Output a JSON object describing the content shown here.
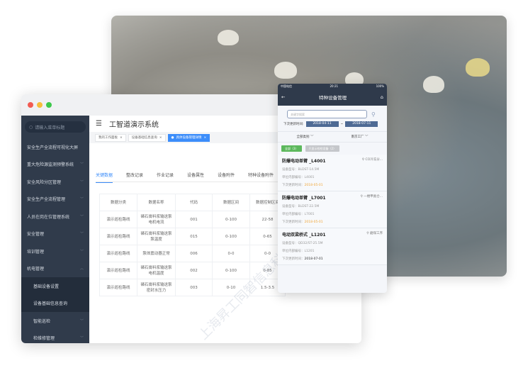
{
  "desktop": {
    "app_title": "工智道演示系统",
    "search_placeholder": "请输入菜单标题",
    "sidebar": [
      {
        "label": "安全生产全流程可视化大屏",
        "chevron": ""
      },
      {
        "label": "重大危险源监测预警系统",
        "chevron": "﹀"
      },
      {
        "label": "安全风险分区管理",
        "chevron": "﹀"
      },
      {
        "label": "安全生产全流程管理",
        "chevron": "﹀"
      },
      {
        "label": "人员在岗在位管理系统",
        "chevron": "﹀"
      },
      {
        "label": "安全管理",
        "chevron": "﹀"
      },
      {
        "label": "培训管理",
        "chevron": "﹀"
      },
      {
        "label": "机电管理",
        "chevron": "︿"
      },
      {
        "label": "基础设备设置",
        "chevron": ""
      },
      {
        "label": "设备基础信息查询",
        "chevron": ""
      },
      {
        "label": "智能巡检",
        "chevron": "﹀"
      },
      {
        "label": "检维修管理",
        "chevron": "﹀"
      }
    ],
    "page_tags": [
      {
        "label": "我的工作面板"
      },
      {
        "label": "设备基础信息查询"
      },
      {
        "label": "具体设备管理详情"
      }
    ],
    "tabs": [
      "关键数据",
      "整改记录",
      "作业记录",
      "设备属性",
      "设备附件",
      "特种设备附件"
    ],
    "table": {
      "headers": [
        "数据分类",
        "数据名称",
        "代码",
        "数据区间",
        "数据控制区间"
      ],
      "rows": [
        [
          "演示巡检路线",
          "磷石膏料浆输送泵电机电流",
          "001",
          "0-100",
          "22-58"
        ],
        [
          "演示巡检路线",
          "磷石膏料浆输送泵泵温度",
          "015",
          "0-100",
          "0-65"
        ],
        [
          "演示巡检路线",
          "泵体震动器正常",
          "006",
          "0-0",
          "0-0"
        ],
        [
          "演示巡检路线",
          "磷石膏料浆输送泵电机温度",
          "002",
          "0-100",
          "0-85"
        ],
        [
          "演示巡检路线",
          "磷石膏料浆输送泵密封水压力",
          "003",
          "0-10",
          "1.5-3.5"
        ]
      ]
    },
    "watermark": "上海昇工同智信息科技有限公司"
  },
  "phone": {
    "status": {
      "carrier": "中国电信",
      "time": "20:21",
      "battery": "100%"
    },
    "title": "特种设备管理",
    "search_placeholder": "关键字搜索",
    "date_label": "下次更新时间:",
    "date_from": "2018-04-11",
    "date_sep": "~",
    "date_to": "2018-07-11",
    "filter_type": "全部类别",
    "filter_factory": "南京工厂",
    "btn_all": "全部（3）",
    "btn_demo": "只显示检检设备（2）",
    "cards": [
      {
        "name": "防爆电动单臂 _L4001",
        "location": "CO冷冻分...",
        "model_label": "设备型号：",
        "model": "BLDST-14.5M",
        "code_label": "单位内部编号：",
        "code": "L4001",
        "date_label": "下次更新时间：",
        "date": "2018-05-01",
        "overdue": true
      },
      {
        "name": "防爆电动单臂 _L7001",
        "location": "一楼甲类仓...",
        "model_label": "设备型号：",
        "model": "BLDST-22.5M",
        "code_label": "单位内部编号：",
        "code": "L7001",
        "date_label": "下次更新时间：",
        "date": "2018-05-01",
        "overdue": true
      },
      {
        "name": "电动双梁桥式 _L1201",
        "location": "磨煤工序",
        "model_label": "设备型号：",
        "model": "QD32/ST-25.5M",
        "code_label": "单位内部编号：",
        "code": "L1201",
        "date_label": "下次更新时间：",
        "date": "2018-07-01",
        "overdue": false
      }
    ]
  },
  "colors": {
    "sidebar": "#303b4b",
    "accent": "#3c8dfa",
    "green": "#5cb85c",
    "orange": "#f0a73a"
  }
}
